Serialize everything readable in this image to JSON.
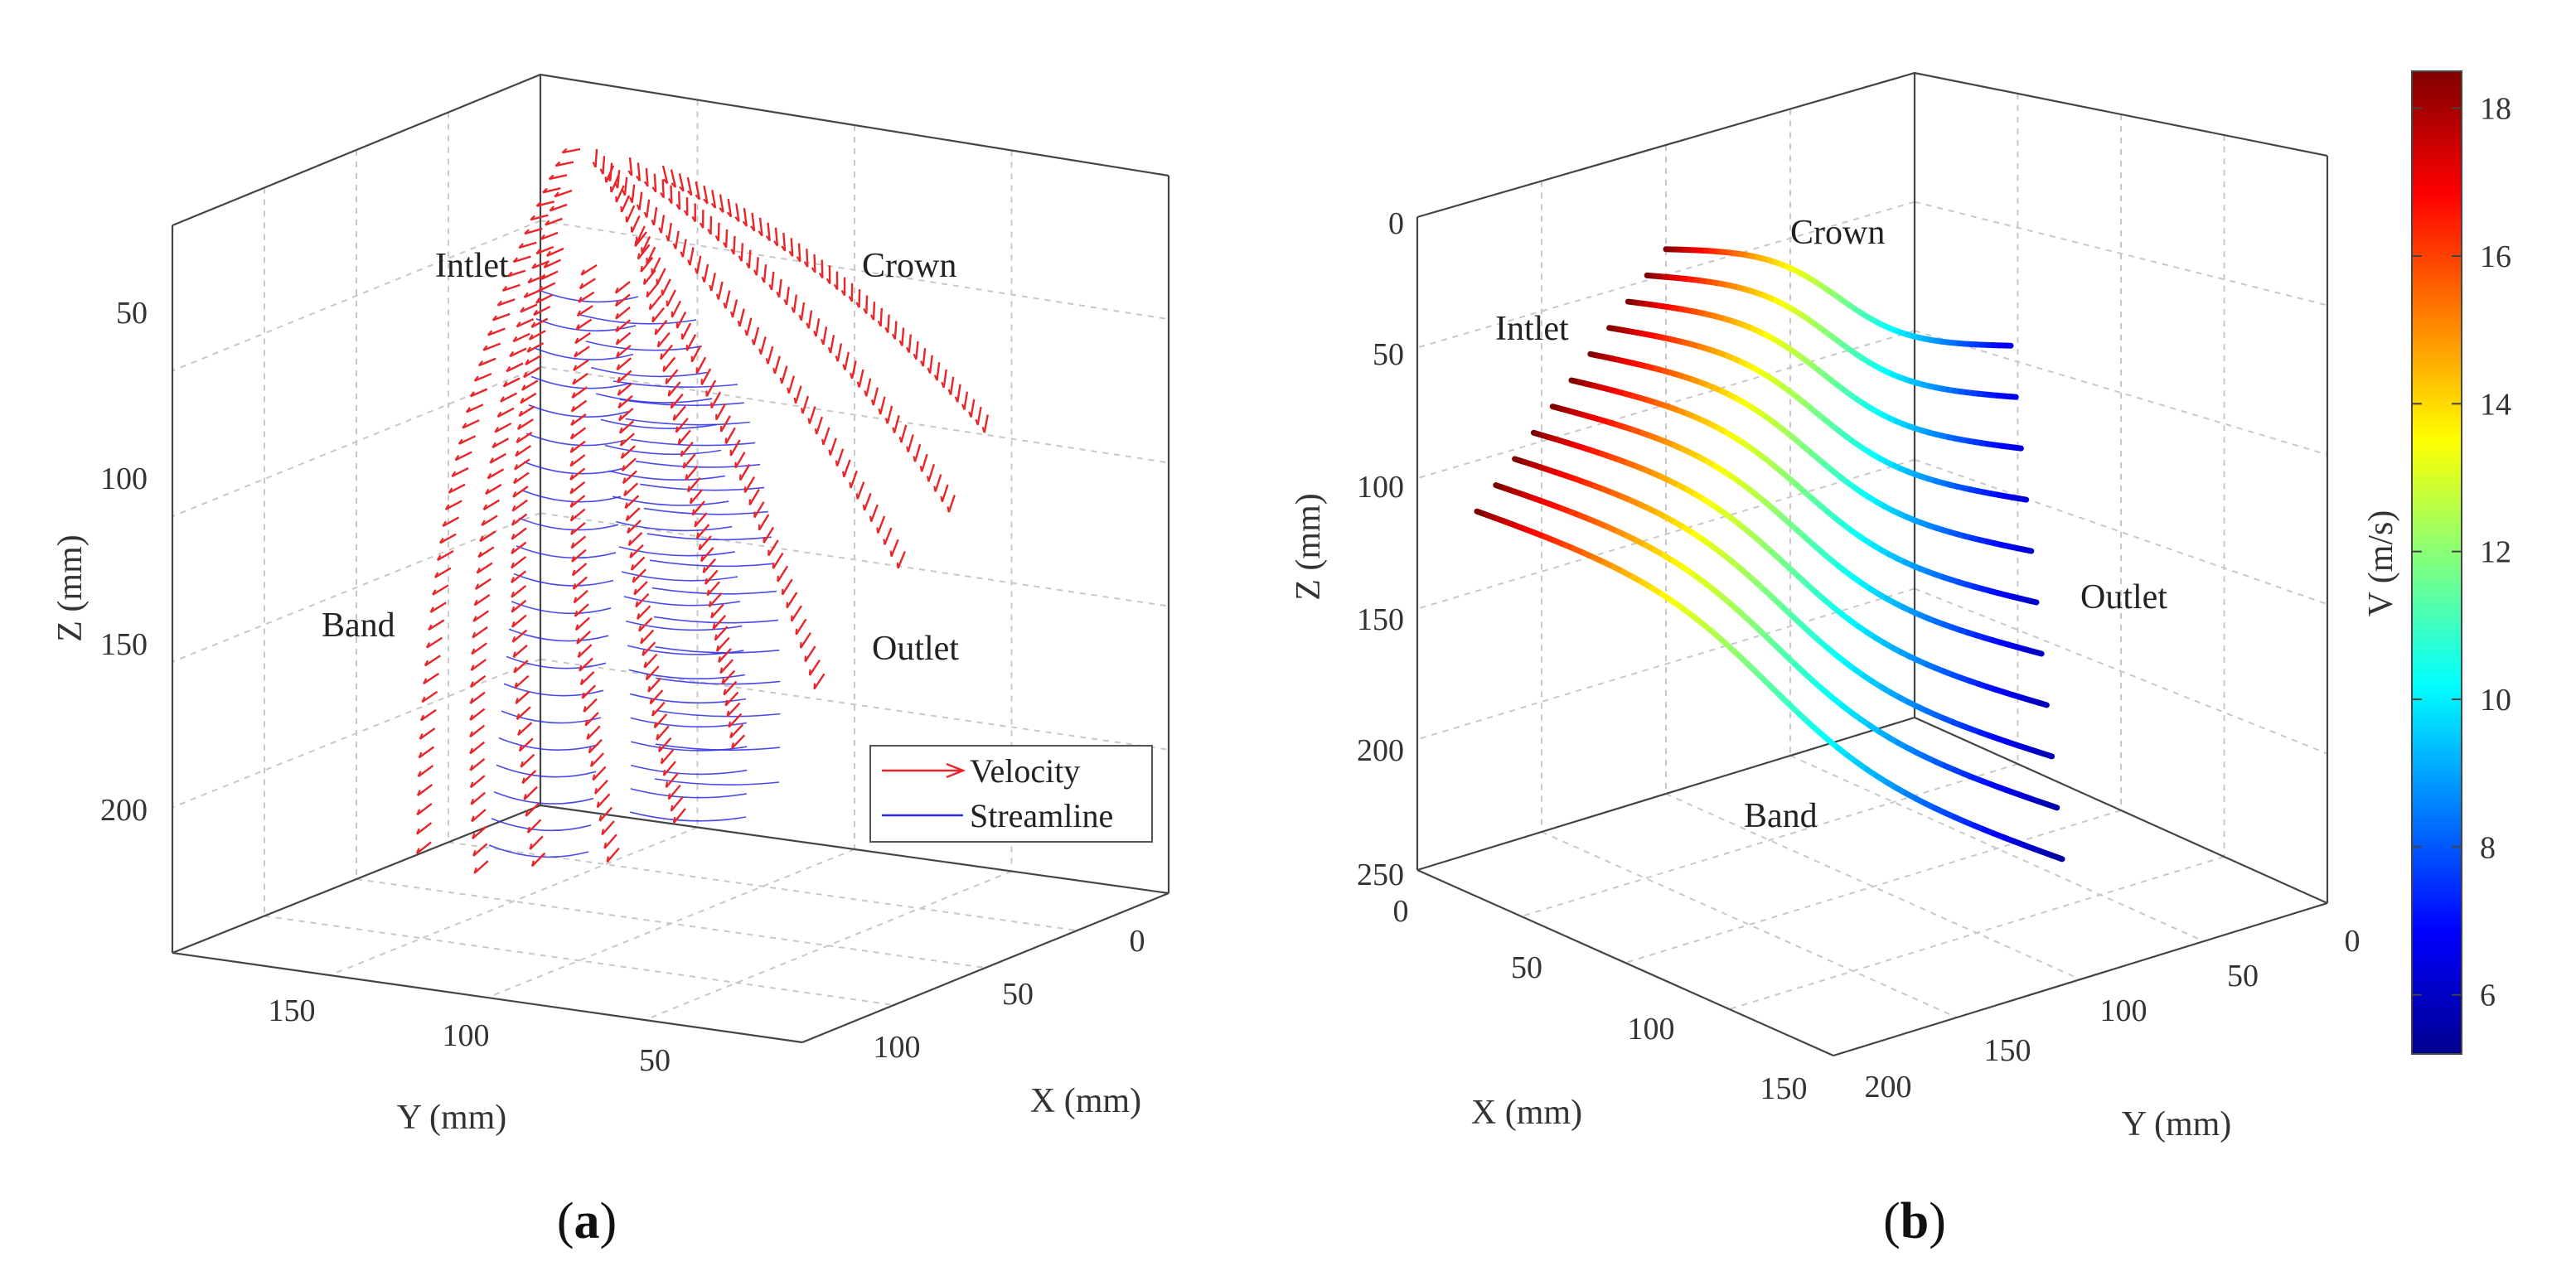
{
  "chart_data": [
    {
      "panel": "a",
      "type": "3d-vector-field",
      "caption": "(a)",
      "caption_bold": "a",
      "xlabel": "X (mm)",
      "ylabel": "Y (mm)",
      "zlabel": "Z (mm)",
      "x_ticks": [
        "0",
        "50",
        "100"
      ],
      "y_ticks": [
        "150",
        "100",
        "50"
      ],
      "z_ticks": [
        "50",
        "100",
        "150",
        "200"
      ],
      "z_reversed": true,
      "annotations": [
        "Intlet",
        "Crown",
        "Band",
        "Outlet"
      ],
      "legend": {
        "position": "lower-right",
        "entries": [
          {
            "label": "Velocity",
            "color": "#e8262a",
            "marker": "arrow"
          },
          {
            "label": "Streamline",
            "color": "#2a2ae6",
            "marker": "line"
          }
        ]
      },
      "grid": true,
      "series": [
        {
          "name": "Velocity",
          "color": "#e8262a"
        },
        {
          "name": "Streamline",
          "color": "#2a2ae6"
        }
      ]
    },
    {
      "panel": "b",
      "type": "3d-line",
      "caption": "(b)",
      "caption_bold": "b",
      "xlabel": "X (mm)",
      "ylabel": "Y (mm)",
      "zlabel": "Z (mm)",
      "x_ticks": [
        "0",
        "50",
        "100",
        "150"
      ],
      "y_ticks": [
        "200",
        "150",
        "100",
        "50",
        "0"
      ],
      "z_ticks": [
        "0",
        "50",
        "100",
        "150",
        "200",
        "250"
      ],
      "z_reversed": true,
      "annotations": [
        "Intlet",
        "Crown",
        "Band",
        "Outlet"
      ],
      "grid": true,
      "colorbar": {
        "label": "V (m/s)",
        "ticks": [
          "6",
          "8",
          "10",
          "12",
          "14",
          "16",
          "18"
        ],
        "range": [
          5.2,
          18.5
        ],
        "colormap": "jet"
      },
      "speed_range": [
        5.5,
        18.5
      ]
    }
  ]
}
